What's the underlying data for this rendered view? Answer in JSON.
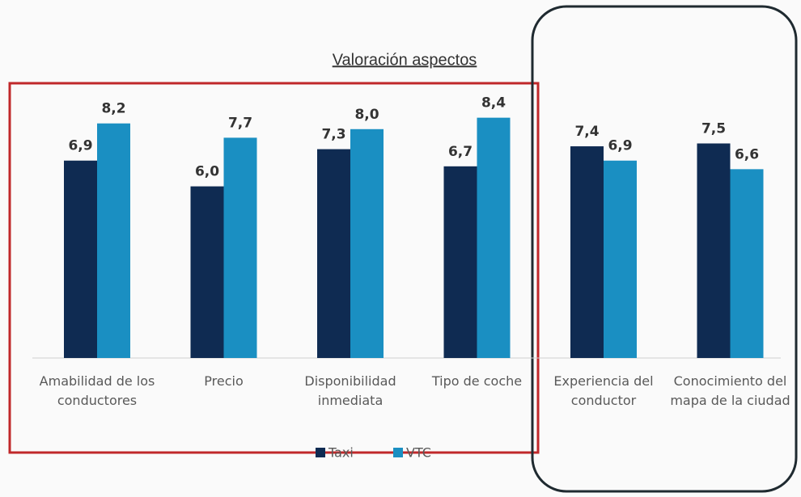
{
  "chart_data": {
    "type": "bar",
    "title": "Valoración aspectos",
    "categories": [
      "Amabilidad de los conductores",
      "Precio",
      "Disponibilidad inmediata",
      "Tipo de coche",
      "Experiencia del conductor",
      "Conocimiento del mapa de la ciudad"
    ],
    "series": [
      {
        "name": "Taxi",
        "color": "#0f2b52",
        "values": [
          6.9,
          6.0,
          7.3,
          6.7,
          7.4,
          7.5
        ],
        "value_labels": [
          "6,9",
          "6,0",
          "7,3",
          "6,7",
          "7,4",
          "7,5"
        ]
      },
      {
        "name": "VTC",
        "color": "#1a8fc2",
        "values": [
          8.2,
          7.7,
          8.0,
          8.4,
          6.9,
          6.6
        ],
        "value_labels": [
          "8,2",
          "7,7",
          "8,0",
          "8,4",
          "6,9",
          "6,6"
        ]
      }
    ],
    "legend": "bottom"
  }
}
